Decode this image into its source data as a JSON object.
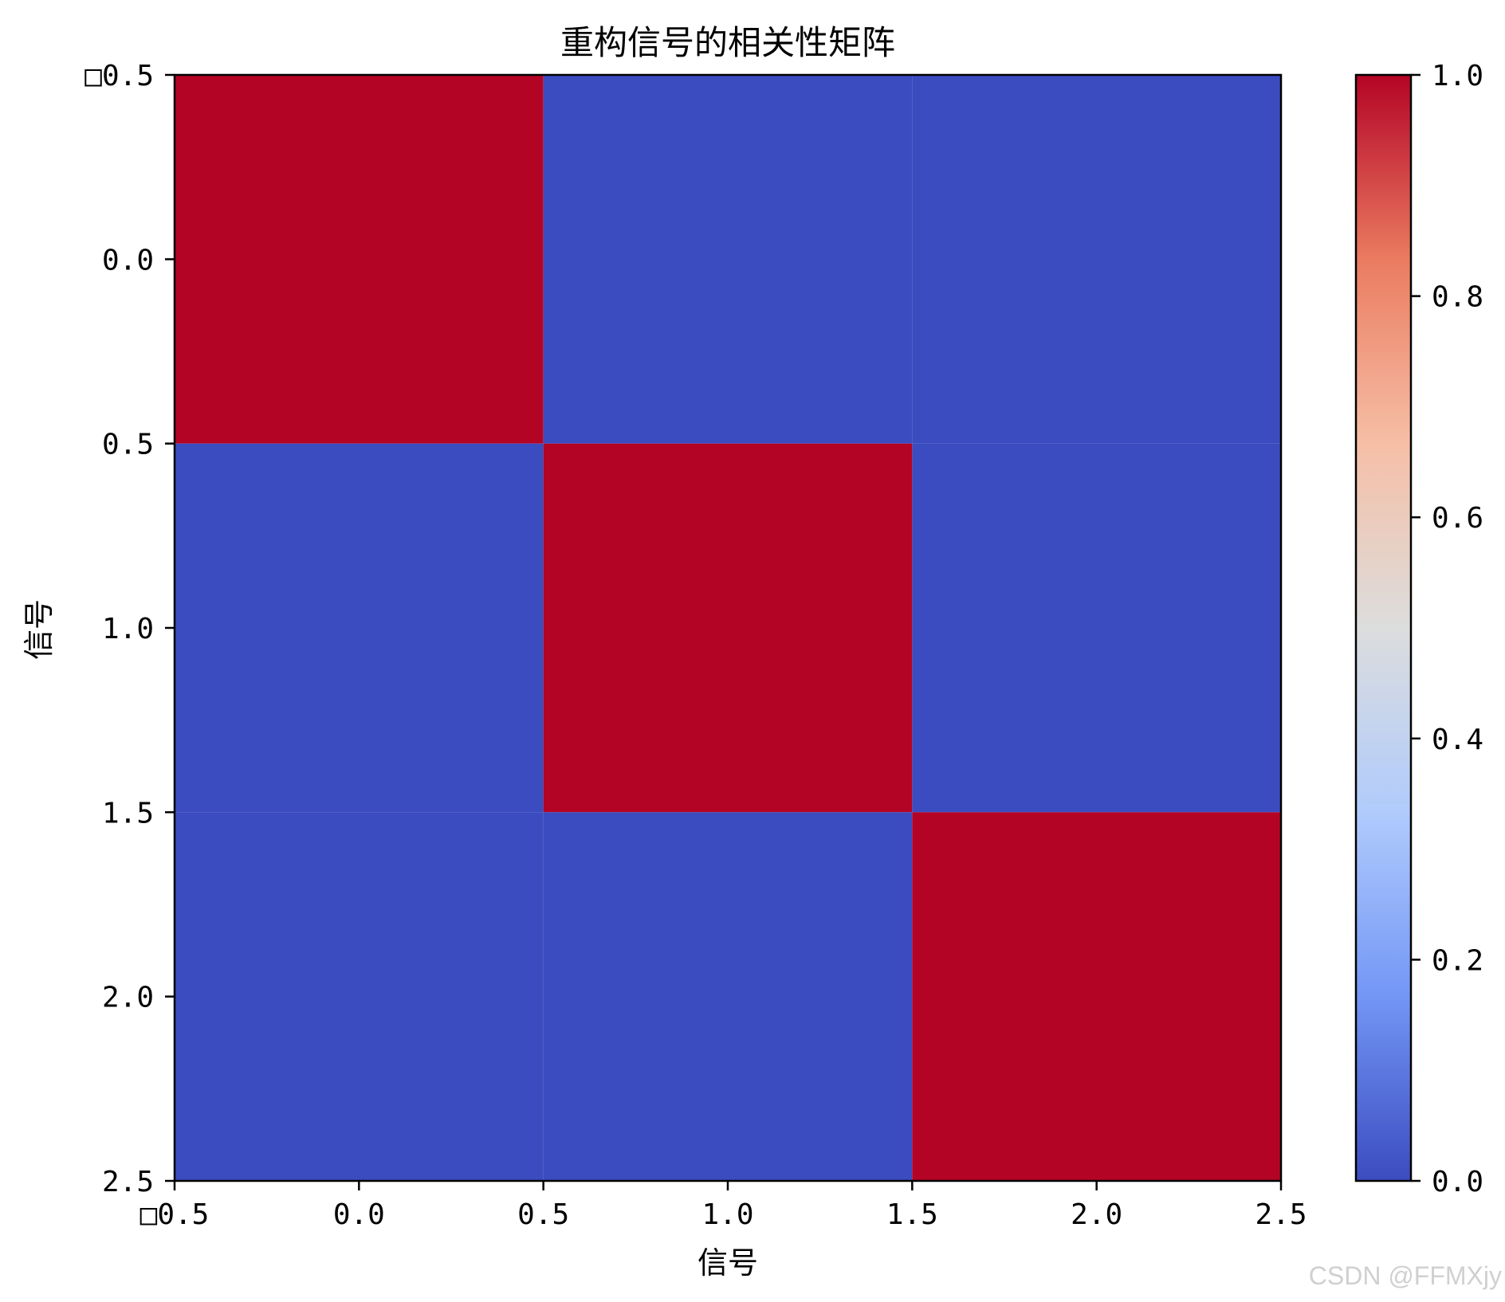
{
  "chart_data": {
    "type": "heatmap",
    "title": "重构信号的相关性矩阵",
    "xlabel": "信号",
    "ylabel": "信号",
    "matrix": [
      [
        1.0,
        0.0,
        0.0
      ],
      [
        0.0,
        1.0,
        0.0
      ],
      [
        0.0,
        0.0,
        1.0
      ]
    ],
    "x_range": [
      -0.5,
      2.5
    ],
    "y_range": [
      -0.5,
      2.5
    ],
    "x_ticks": [
      -0.5,
      0.0,
      0.5,
      1.0,
      1.5,
      2.0,
      2.5
    ],
    "y_ticks": [
      -0.5,
      0.0,
      0.5,
      1.0,
      1.5,
      2.0,
      2.5
    ],
    "x_tick_labels": [
      "□0.5",
      "0.0",
      "0.5",
      "1.0",
      "1.5",
      "2.0",
      "2.5"
    ],
    "y_tick_labels": [
      "□0.5",
      "0.0",
      "0.5",
      "1.0",
      "1.5",
      "2.0",
      "2.5"
    ],
    "colormap": "coolwarm",
    "colorbar_range": [
      0.0,
      1.0
    ],
    "colorbar_ticks": [
      0.0,
      0.2,
      0.4,
      0.6,
      0.8,
      1.0
    ],
    "colorbar_tick_labels": [
      "0.0",
      "0.2",
      "0.4",
      "0.6",
      "0.8",
      "1.0"
    ],
    "colorbar_stops": [
      "#3b4cc0",
      "#7396f5",
      "#b0cbfc",
      "#dcdddd",
      "#f6bfa6",
      "#ea7b60",
      "#b40426"
    ],
    "high_color": "#b40426",
    "low_color": "#3b4cc0",
    "grid": false,
    "legend": "none"
  },
  "watermark": "CSDN @FFMXjy"
}
